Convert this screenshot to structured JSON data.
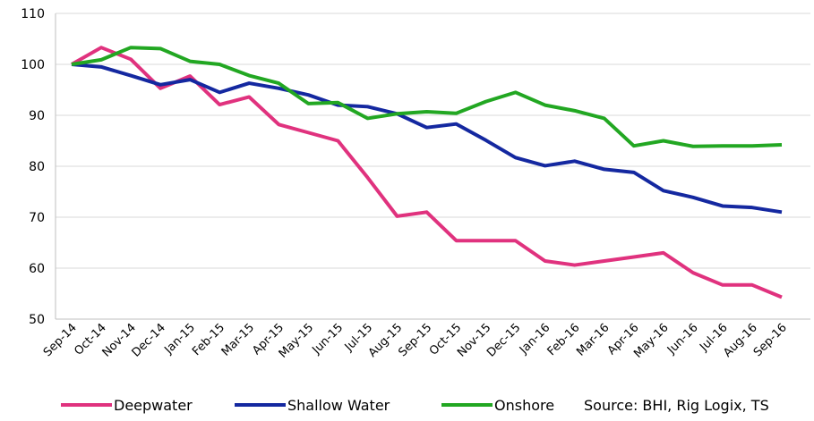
{
  "chart_data": {
    "type": "line",
    "categories": [
      "Sep-14",
      "Oct-14",
      "Nov-14",
      "Dec-14",
      "Jan-15",
      "Feb-15",
      "Mar-15",
      "Apr-15",
      "May-15",
      "Jun-15",
      "Jul-15",
      "Aug-15",
      "Sep-15",
      "Oct-15",
      "Nov-15",
      "Dec-15",
      "Jan-16",
      "Feb-16",
      "Mar-16",
      "Apr-16",
      "May-16",
      "Jun-16",
      "Jul-16",
      "Aug-16",
      "Sep-16"
    ],
    "series": [
      {
        "name": "Deepwater",
        "color": "#e0327e",
        "values": [
          100,
          103.3,
          101,
          95.3,
          97.7,
          92.1,
          93.6,
          88.2,
          86.6,
          85.0,
          77.8,
          70.2,
          71.0,
          65.4,
          65.4,
          65.4,
          61.4,
          60.6,
          61.4,
          62.2,
          63.0,
          59.1,
          56.7,
          56.7,
          54.3
        ]
      },
      {
        "name": "Shallow Water",
        "color": "#1428a0",
        "values": [
          100,
          99.5,
          97.8,
          96.0,
          97.0,
          94.5,
          96.3,
          95.3,
          94.0,
          92.0,
          91.7,
          90.3,
          87.6,
          88.3,
          85.1,
          81.7,
          80.1,
          81.0,
          79.4,
          78.8,
          75.2,
          73.9,
          72.2,
          71.9,
          71.0
        ]
      },
      {
        "name": "Onshore",
        "color": "#22a722",
        "values": [
          100,
          100.9,
          103.3,
          103.1,
          100.6,
          100.0,
          97.8,
          96.3,
          92.3,
          92.5,
          89.4,
          90.3,
          90.7,
          90.4,
          92.7,
          94.5,
          92.0,
          90.9,
          89.4,
          84.0,
          85.0,
          83.9,
          84.0,
          84.0,
          84.2
        ]
      }
    ],
    "ylim": [
      50,
      110
    ],
    "yticks": [
      50,
      60,
      70,
      80,
      90,
      100,
      110
    ],
    "grid": true,
    "legend": "bottom",
    "annotation": "Source: BHI, Rig Logix, TS"
  }
}
